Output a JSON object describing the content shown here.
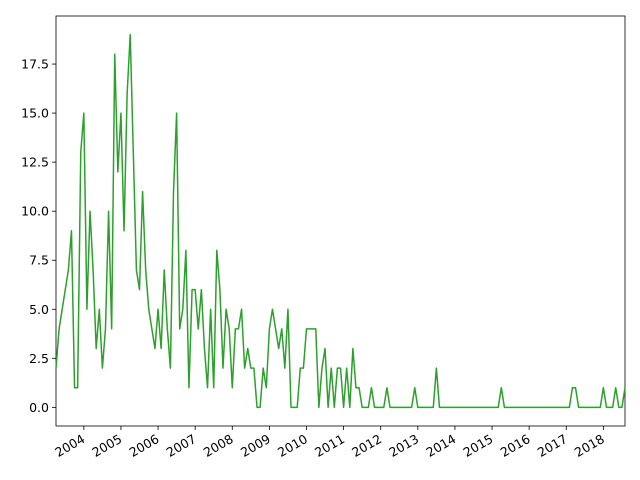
{
  "chart_data": {
    "type": "line",
    "color": "#2ca02c",
    "x": [
      2003.25,
      2003.333,
      2003.417,
      2003.5,
      2003.583,
      2003.667,
      2003.75,
      2003.833,
      2003.917,
      2004,
      2004.083,
      2004.167,
      2004.25,
      2004.333,
      2004.417,
      2004.5,
      2004.583,
      2004.667,
      2004.75,
      2004.833,
      2004.917,
      2005,
      2005.083,
      2005.167,
      2005.25,
      2005.333,
      2005.417,
      2005.5,
      2005.583,
      2005.667,
      2005.75,
      2005.833,
      2005.917,
      2006,
      2006.083,
      2006.167,
      2006.25,
      2006.333,
      2006.417,
      2006.5,
      2006.583,
      2006.667,
      2006.75,
      2006.833,
      2006.917,
      2007,
      2007.083,
      2007.167,
      2007.25,
      2007.333,
      2007.417,
      2007.5,
      2007.583,
      2007.667,
      2007.75,
      2007.833,
      2007.917,
      2008,
      2008.083,
      2008.167,
      2008.25,
      2008.333,
      2008.417,
      2008.5,
      2008.583,
      2008.667,
      2008.75,
      2008.833,
      2008.917,
      2009,
      2009.083,
      2009.167,
      2009.25,
      2009.333,
      2009.417,
      2009.5,
      2009.583,
      2009.667,
      2009.75,
      2009.833,
      2009.917,
      2010,
      2010.083,
      2010.167,
      2010.25,
      2010.333,
      2010.417,
      2010.5,
      2010.583,
      2010.667,
      2010.75,
      2010.833,
      2010.917,
      2011,
      2011.083,
      2011.167,
      2011.25,
      2011.333,
      2011.417,
      2011.5,
      2011.583,
      2011.667,
      2011.75,
      2011.833,
      2011.917,
      2012,
      2012.083,
      2012.167,
      2012.25,
      2012.333,
      2012.417,
      2012.5,
      2012.583,
      2012.667,
      2012.75,
      2012.833,
      2012.917,
      2013,
      2013.083,
      2013.167,
      2013.25,
      2013.333,
      2013.417,
      2013.5,
      2013.583,
      2013.667,
      2013.75,
      2013.833,
      2013.917,
      2014,
      2014.083,
      2014.167,
      2014.25,
      2014.333,
      2014.417,
      2014.5,
      2014.583,
      2014.667,
      2014.75,
      2014.833,
      2014.917,
      2015,
      2015.083,
      2015.167,
      2015.25,
      2015.333,
      2015.417,
      2015.5,
      2015.583,
      2015.667,
      2015.75,
      2015.833,
      2015.917,
      2016,
      2016.083,
      2016.167,
      2016.25,
      2016.333,
      2016.417,
      2016.5,
      2016.583,
      2016.667,
      2016.75,
      2016.833,
      2016.917,
      2017,
      2017.083,
      2017.167,
      2017.25,
      2017.333,
      2017.417,
      2017.5,
      2017.583,
      2017.667,
      2017.75,
      2017.833,
      2017.917,
      2018,
      2018.083,
      2018.167,
      2018.25,
      2018.333,
      2018.417,
      2018.5,
      2018.583
    ],
    "values": [
      2,
      4,
      5,
      6,
      7,
      9,
      1,
      1,
      13,
      15,
      5,
      10,
      7,
      3,
      5,
      2,
      4,
      10,
      4,
      18,
      12,
      15,
      9,
      16,
      19,
      13,
      7,
      6,
      11,
      7,
      5,
      4,
      3,
      5,
      3,
      7,
      4,
      2,
      11,
      15,
      4,
      5,
      8,
      1,
      6,
      6,
      4,
      6,
      3,
      1,
      5,
      1,
      8,
      6,
      2,
      5,
      4,
      1,
      4,
      4,
      5,
      2,
      3,
      2,
      2,
      0,
      0,
      2,
      1,
      4,
      5,
      4,
      3,
      4,
      2,
      5,
      0,
      0,
      0,
      2,
      2,
      4,
      4,
      4,
      4,
      0,
      2,
      3,
      0,
      2,
      0,
      2,
      2,
      0,
      2,
      0,
      3,
      1,
      1,
      0,
      0,
      0,
      1,
      0,
      0,
      0,
      0,
      1,
      0,
      0,
      0,
      0,
      0,
      0,
      0,
      0,
      1,
      0,
      0,
      0,
      0,
      0,
      0,
      2,
      0,
      0,
      0,
      0,
      0,
      0,
      0,
      0,
      0,
      0,
      0,
      0,
      0,
      0,
      0,
      0,
      0,
      0,
      0,
      0,
      1,
      0,
      0,
      0,
      0,
      0,
      0,
      0,
      0,
      0,
      0,
      0,
      0,
      0,
      0,
      0,
      0,
      0,
      0,
      0,
      0,
      0,
      0,
      1,
      1,
      0,
      0,
      0,
      0,
      0,
      0,
      0,
      0,
      1,
      0,
      0,
      0,
      1,
      0,
      0,
      1
    ],
    "xlim": [
      2003.25,
      2018.583
    ],
    "xticks": [
      2004,
      2005,
      2006,
      2007,
      2008,
      2009,
      2010,
      2011,
      2012,
      2013,
      2014,
      2015,
      2016,
      2017,
      2018
    ],
    "ylim": [
      -0.95,
      19.95
    ],
    "yticks": [
      {
        "value": 0,
        "label": "0.0"
      },
      {
        "value": 2.5,
        "label": "2.5"
      },
      {
        "value": 5,
        "label": "5.0"
      },
      {
        "value": 7.5,
        "label": "7.5"
      },
      {
        "value": 10,
        "label": "10.0"
      },
      {
        "value": 12.5,
        "label": "12.5"
      },
      {
        "value": 15,
        "label": "15.0"
      },
      {
        "value": 17.5,
        "label": "17.5"
      }
    ],
    "grid": false
  }
}
